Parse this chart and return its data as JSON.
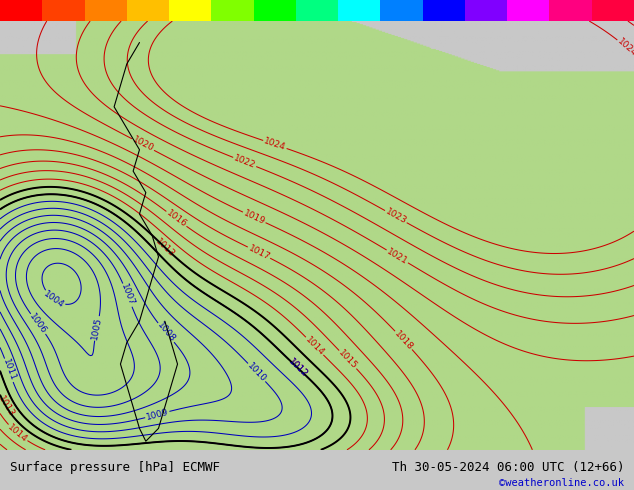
{
  "title_left": "Surface pressure [hPa] ECMWF",
  "title_right": "Th 30-05-2024 06:00 UTC (12+66)",
  "copyright": "©weatheronline.co.uk",
  "bg_color": "#c8c8c8",
  "land_color": "#b0d888",
  "sea_color": "#c8c8c8",
  "contour_color_red": "#cc0000",
  "contour_color_blue": "#0000bb",
  "contour_color_black": "#000000",
  "label_fontsize": 6.5,
  "footer_fontsize": 9,
  "copyright_color": "#0000cc",
  "footer_bg": "#c8c8c8",
  "rainbow_colors": [
    "#ff0000",
    "#ff4000",
    "#ff8000",
    "#ffbf00",
    "#ffff00",
    "#80ff00",
    "#00ff00",
    "#00ff80",
    "#00ffff",
    "#0080ff",
    "#0000ff",
    "#8000ff",
    "#ff00ff",
    "#ff0080",
    "#ff0040"
  ],
  "pressure_levels_red": [
    1012,
    1013,
    1014,
    1015,
    1016,
    1017,
    1018,
    1019,
    1020,
    1021,
    1022,
    1023,
    1024
  ],
  "pressure_levels_blue": [
    1004,
    1005,
    1006,
    1007,
    1008,
    1009,
    1010,
    1011,
    1012
  ],
  "pressure_levels_black": [
    1012,
    1013
  ],
  "all_levels": [
    1004,
    1005,
    1006,
    1007,
    1008,
    1009,
    1010,
    1011,
    1012,
    1013,
    1014,
    1015,
    1016,
    1017,
    1018,
    1019,
    1020,
    1021,
    1022,
    1023,
    1024
  ]
}
